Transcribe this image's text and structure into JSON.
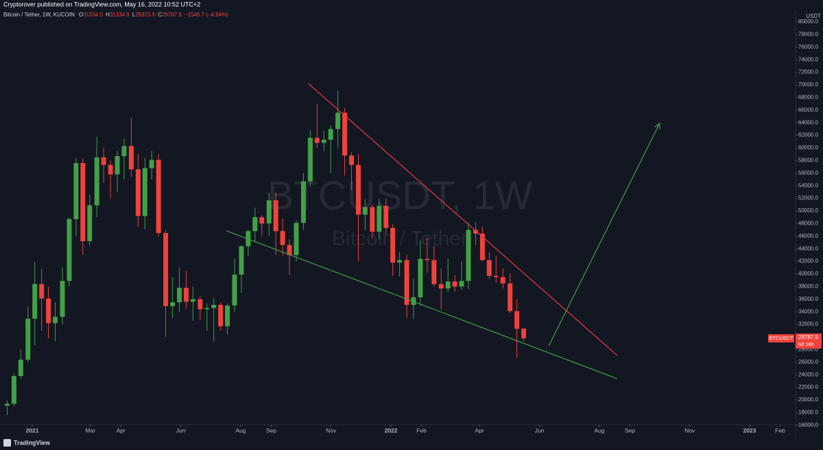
{
  "published": "Cryptorover published on TradingView.com, May 16, 2022 10:52 UTC+2",
  "footer": "TradingView",
  "chart_data": {
    "type": "candlestick",
    "symbol_description": "Bitcoin / Tether, 1W, KUCOIN",
    "ohlc_labels": [
      "O",
      "H",
      "L",
      "C"
    ],
    "change": "−1546.7 (−4.94%)",
    "watermark": "BTCUSDT, 1W",
    "watermark_sub": "Bitcoin / Tether",
    "y_axis_label": "USDT",
    "price_tag": {
      "symbol": "BTCUSDT",
      "countdown": "6d 16h"
    },
    "up_color": "#43a047",
    "down_color": "#f0423c",
    "grid": false,
    "xlim": [
      2020.91,
      2023.128
    ],
    "ylim": [
      15000,
      81300
    ],
    "x": [
      2020.93,
      2020.949,
      2020.968,
      2020.988,
      2021.007,
      2021.026,
      2021.045,
      2021.064,
      2021.084,
      2021.103,
      2021.122,
      2021.141,
      2021.16,
      2021.18,
      2021.199,
      2021.218,
      2021.237,
      2021.256,
      2021.276,
      2021.295,
      2021.314,
      2021.333,
      2021.352,
      2021.372,
      2021.391,
      2021.41,
      2021.429,
      2021.448,
      2021.468,
      2021.487,
      2021.506,
      2021.525,
      2021.544,
      2021.564,
      2021.583,
      2021.602,
      2021.621,
      2021.64,
      2021.66,
      2021.679,
      2021.698,
      2021.717,
      2021.736,
      2021.756,
      2021.775,
      2021.794,
      2021.813,
      2021.832,
      2021.852,
      2021.871,
      2021.89,
      2021.909,
      2021.928,
      2021.948,
      2021.967,
      2021.986,
      2022.005,
      2022.024,
      2022.044,
      2022.063,
      2022.082,
      2022.101,
      2022.12,
      2022.14,
      2022.159,
      2022.178,
      2022.197,
      2022.216,
      2022.236,
      2022.255,
      2022.274,
      2022.293,
      2022.312,
      2022.332,
      2022.351,
      2022.37
    ],
    "open": [
      19100,
      19400,
      23800,
      26400,
      32900,
      38400,
      36100,
      32200,
      33200,
      38900,
      48700,
      57600,
      45200,
      50900,
      58500,
      57300,
      55800,
      58700,
      60300,
      56600,
      49200,
      56800,
      58100,
      46500,
      34900,
      35500,
      37800,
      35600,
      36000,
      34400,
      34600,
      35100,
      31700,
      35000,
      39900,
      44400,
      46800,
      49000,
      48000,
      51700,
      46800,
      44600,
      43000,
      48100,
      54700,
      61600,
      60800,
      61300,
      63000,
      65600,
      58800,
      57300,
      49400,
      50600,
      46700,
      50800,
      47300,
      41800,
      42200,
      35100,
      36300,
      42400,
      42200,
      38400,
      37700,
      38800,
      38000,
      38900,
      47000,
      46400,
      42200,
      39700,
      39500,
      38500,
      34100,
      31334.5
    ],
    "high": [
      19900,
      24200,
      28000,
      34800,
      41900,
      40800,
      38000,
      35500,
      41000,
      49000,
      58400,
      58300,
      52600,
      61800,
      60000,
      58000,
      59500,
      61500,
      64800,
      59000,
      58400,
      59500,
      59000,
      47000,
      39500,
      41000,
      40500,
      38000,
      36500,
      35300,
      36200,
      35500,
      35300,
      42500,
      44500,
      47000,
      50500,
      49300,
      52900,
      52900,
      48800,
      45500,
      48500,
      56000,
      62800,
      67000,
      62700,
      63600,
      69000,
      66300,
      59300,
      59000,
      51900,
      51000,
      51900,
      52000,
      47900,
      43500,
      43100,
      39300,
      45300,
      45800,
      44500,
      40900,
      42400,
      39800,
      42000,
      48200,
      48200,
      47500,
      43400,
      42900,
      40900,
      40100,
      36000,
      31334.9
    ],
    "low": [
      17600,
      19000,
      23400,
      26000,
      28700,
      31000,
      29800,
      29300,
      32000,
      38000,
      46000,
      43000,
      44500,
      49000,
      54500,
      52000,
      53000,
      55000,
      55400,
      47500,
      47100,
      55000,
      46000,
      30000,
      33000,
      34000,
      34500,
      32600,
      32700,
      31000,
      29300,
      31000,
      30400,
      34000,
      37000,
      42800,
      45000,
      46000,
      46000,
      43000,
      42900,
      39800,
      42000,
      47000,
      53900,
      60000,
      59500,
      56000,
      60000,
      55600,
      53300,
      42000,
      47000,
      45600,
      45500,
      46200,
      39700,
      39600,
      33000,
      32900,
      34900,
      40200,
      38000,
      34300,
      37100,
      37200,
      37500,
      37600,
      44600,
      42100,
      39200,
      38600,
      37700,
      33800,
      26700,
      29315.9
    ],
    "close": [
      19400,
      23800,
      26400,
      32900,
      38400,
      36100,
      32200,
      33200,
      38900,
      48700,
      57600,
      45200,
      50900,
      58500,
      57300,
      55800,
      58700,
      60300,
      56600,
      49200,
      56800,
      58100,
      46500,
      34900,
      35500,
      37800,
      35600,
      36000,
      34400,
      34600,
      35100,
      31700,
      35000,
      39900,
      44400,
      46800,
      49000,
      48000,
      51700,
      46800,
      44600,
      43000,
      48100,
      54700,
      61600,
      60800,
      61300,
      63000,
      65600,
      58800,
      57300,
      49400,
      50600,
      46700,
      50800,
      47300,
      41800,
      42200,
      35100,
      36300,
      42400,
      42200,
      38400,
      37700,
      38800,
      38000,
      38900,
      47000,
      46400,
      42200,
      39700,
      39500,
      38500,
      34100,
      31300,
      29787.9
    ],
    "xticks": [
      {
        "value": 2021.0,
        "label": "2021"
      },
      {
        "value": 2021.162,
        "label": "Mar"
      },
      {
        "value": 2021.247,
        "label": "Apr"
      },
      {
        "value": 2021.414,
        "label": "Jun"
      },
      {
        "value": 2021.581,
        "label": "Aug"
      },
      {
        "value": 2021.666,
        "label": "Sep"
      },
      {
        "value": 2021.833,
        "label": "Nov"
      },
      {
        "value": 2022.0,
        "label": "2022"
      },
      {
        "value": 2022.085,
        "label": "Feb"
      },
      {
        "value": 2022.247,
        "label": "Apr"
      },
      {
        "value": 2022.414,
        "label": "Jun"
      },
      {
        "value": 2022.581,
        "label": "Aug"
      },
      {
        "value": 2022.666,
        "label": "Sep"
      },
      {
        "value": 2022.833,
        "label": "Nov"
      },
      {
        "value": 2023.0,
        "label": "2023"
      },
      {
        "value": 2023.085,
        "label": "Feb"
      }
    ],
    "yticks": [
      {
        "value": 16000,
        "label": "16000.0"
      },
      {
        "value": 18000,
        "label": "18000.0"
      },
      {
        "value": 20000,
        "label": "20000.0"
      },
      {
        "value": 22000,
        "label": "22000.0"
      },
      {
        "value": 24000,
        "label": "24000.0"
      },
      {
        "value": 26000,
        "label": "26000.0"
      },
      {
        "value": 28000,
        "label": "28000.0"
      },
      {
        "value": 30000,
        "label": "30000.0"
      },
      {
        "value": 32000,
        "label": "32000.0"
      },
      {
        "value": 34000,
        "label": "34000.0"
      },
      {
        "value": 36000,
        "label": "36000.0"
      },
      {
        "value": 38000,
        "label": "38000.0"
      },
      {
        "value": 40000,
        "label": "40000.0"
      },
      {
        "value": 42000,
        "label": "42000.0"
      },
      {
        "value": 44000,
        "label": "44000.0"
      },
      {
        "value": 46000,
        "label": "46000.0"
      },
      {
        "value": 48000,
        "label": "48000.0"
      },
      {
        "value": 50000,
        "label": "50000.0"
      },
      {
        "value": 52000,
        "label": "52000.0"
      },
      {
        "value": 54000,
        "label": "54000.0"
      },
      {
        "value": 56000,
        "label": "56000.0"
      },
      {
        "value": 58000,
        "label": "58000.0"
      },
      {
        "value": 60000,
        "label": "60000.0"
      },
      {
        "value": 62000,
        "label": "62000.0"
      },
      {
        "value": 64000,
        "label": "64000.0"
      },
      {
        "value": 66000,
        "label": "66000.0"
      },
      {
        "value": 68000,
        "label": "68000.0"
      },
      {
        "value": 70000,
        "label": "70000.0"
      },
      {
        "value": 72000,
        "label": "72000.0"
      },
      {
        "value": 74000,
        "label": "74000.0"
      },
      {
        "value": 76000,
        "label": "76000.0"
      },
      {
        "value": 78000,
        "label": "78000.0"
      },
      {
        "value": 80000,
        "label": "80000.0"
      }
    ],
    "trendlines": [
      {
        "color": "#f23645",
        "x": [
          2021.77,
          2022.631
        ],
        "y": [
          70200,
          27060
        ]
      },
      {
        "color": "#43a047",
        "x": [
          2021.541,
          2022.631
        ],
        "y": [
          46850,
          23370
        ]
      }
    ],
    "arrows": [
      {
        "color": "#43a047",
        "x": [
          2022.44,
          2022.749
        ],
        "y": [
          28590,
          63910
        ]
      }
    ]
  }
}
